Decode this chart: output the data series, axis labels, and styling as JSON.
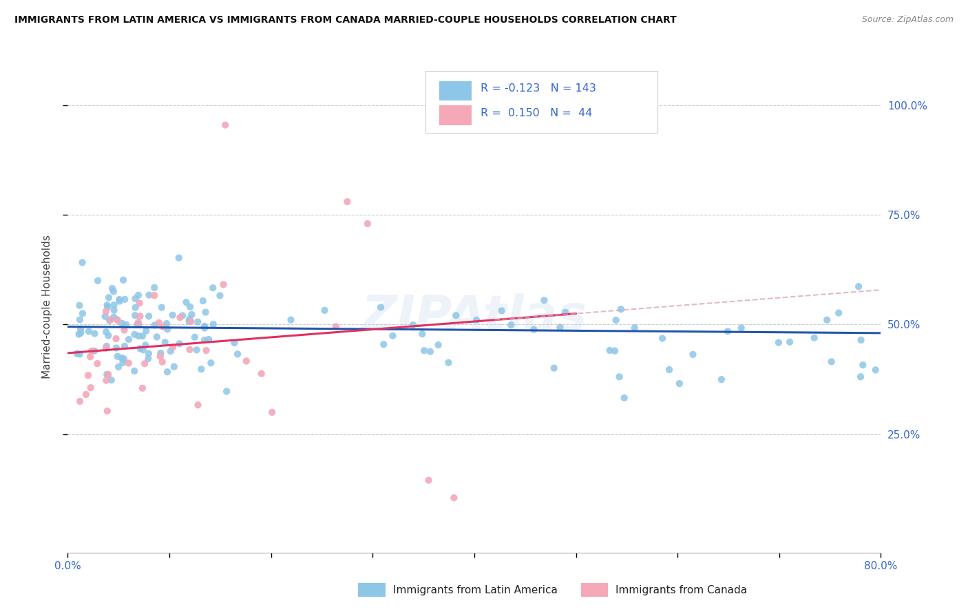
{
  "title": "IMMIGRANTS FROM LATIN AMERICA VS IMMIGRANTS FROM CANADA MARRIED-COUPLE HOUSEHOLDS CORRELATION CHART",
  "source": "Source: ZipAtlas.com",
  "ylabel": "Married-couple Households",
  "xlim": [
    0.0,
    0.8
  ],
  "ylim": [
    -0.02,
    1.1
  ],
  "blue_color": "#8ec6e8",
  "pink_color": "#f4a8b8",
  "blue_line_color": "#2255aa",
  "pink_line_color": "#e03060",
  "pink_dash_color": "#d8a0b8",
  "text_color": "#3366cc",
  "watermark": "ZIPAtlas",
  "legend_R_blue": "-0.123",
  "legend_N_blue": "143",
  "legend_R_pink": "0.150",
  "legend_N_pink": "44",
  "legend_label_blue": "Immigrants from Latin America",
  "legend_label_pink": "Immigrants from Canada",
  "grid_color": "#cccccc",
  "background_color": "#ffffff",
  "blue_intercept": 0.495,
  "blue_slope": -0.018,
  "pink_intercept": 0.435,
  "pink_slope": 0.18
}
